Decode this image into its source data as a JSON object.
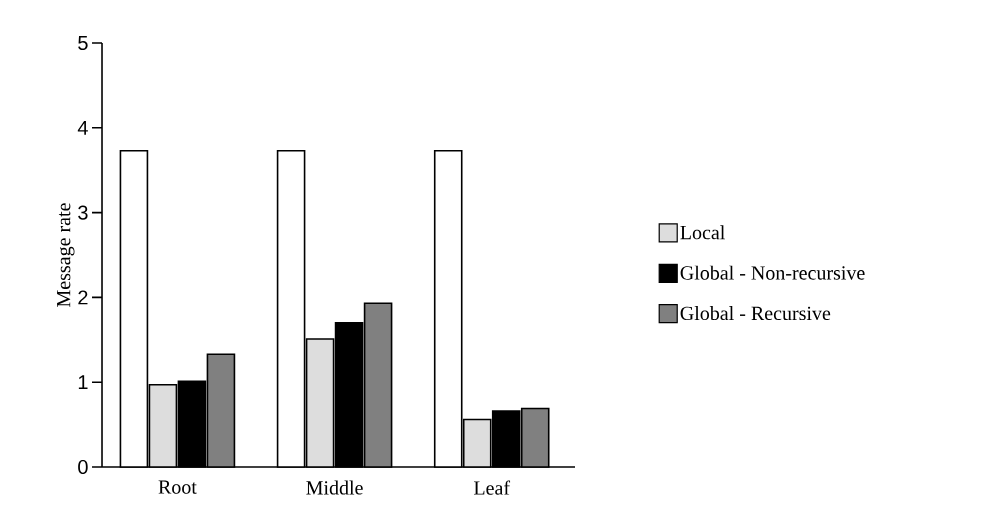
{
  "chart_data": {
    "type": "bar",
    "ylabel": "Message rate",
    "categories": [
      "Root",
      "Middle",
      "Leaf"
    ],
    "series": [
      {
        "color": "#ffffff",
        "values": [
          3.73,
          3.73,
          3.73
        ]
      },
      {
        "name": "Local",
        "color": "#dddddd",
        "values": [
          0.97,
          1.51,
          0.56
        ]
      },
      {
        "name": "Global - Non-recursive",
        "color": "#000000",
        "values": [
          1.01,
          1.7,
          0.66
        ]
      },
      {
        "name": "Global - Recursive",
        "color": "#808080",
        "values": [
          1.33,
          1.93,
          0.69
        ]
      }
    ],
    "ylim": [
      0,
      5
    ],
    "yticks": [
      0,
      1,
      2,
      3,
      4,
      5
    ],
    "legend": "right"
  }
}
